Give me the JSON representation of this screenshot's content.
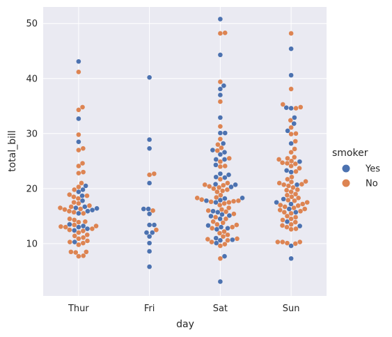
{
  "chart_data": {
    "type": "scatter",
    "subtype": "swarm",
    "categories": [
      "Thur",
      "Fri",
      "Sat",
      "Sun"
    ],
    "xlabel": "day",
    "ylabel": "total_bill",
    "ylim": [
      0.5,
      53
    ],
    "yticks": [
      10,
      20,
      30,
      40,
      50
    ],
    "grid": true,
    "legend": {
      "title": "smoker",
      "placement": "right"
    },
    "series": [
      {
        "name": "Yes",
        "color": "#4c72b0",
        "values": {
          "Thur": [
            43.1,
            32.7,
            28.5,
            20.5,
            19.8,
            19.4,
            18.7,
            17.8,
            16.7,
            16.5,
            16.4,
            16.1,
            15.9,
            15.5,
            13.5,
            13.2,
            13.0,
            12.7,
            12.4,
            10.3
          ],
          "Fri": [
            40.2,
            28.9,
            27.3,
            21.0,
            16.3,
            16.3,
            15.4,
            13.4,
            13.4,
            12.0,
            12.0,
            11.3,
            10.1,
            8.6,
            5.8
          ],
          "Sat": [
            50.8,
            44.3,
            38.7,
            38.1,
            37.0,
            32.9,
            30.1,
            30.1,
            28.2,
            27.0,
            26.6,
            26.2,
            25.3,
            25.3,
            24.3,
            22.7,
            22.5,
            22.1,
            22.0,
            20.8,
            20.7,
            20.3,
            18.3,
            18.2,
            17.9,
            17.8,
            17.5,
            15.9,
            15.7,
            15.3,
            15.1,
            15.0,
            14.5,
            13.3,
            13.0,
            12.8,
            12.6,
            11.0,
            10.7,
            10.6,
            10.1,
            7.7,
            3.1
          ],
          "Sun": [
            45.4,
            40.6,
            34.7,
            34.6,
            32.9,
            31.8,
            30.5,
            28.2,
            24.9,
            23.3,
            23.0,
            20.7,
            18.1,
            17.5,
            17.2,
            16.3,
            15.7,
            14.0,
            13.2,
            9.6,
            7.3
          ]
        }
      },
      {
        "name": "No",
        "color": "#dd8452",
        "values": {
          "Thur": [
            41.2,
            34.8,
            34.3,
            29.8,
            27.3,
            27.0,
            24.6,
            24.1,
            23.0,
            22.8,
            21.0,
            20.3,
            19.8,
            18.9,
            18.7,
            18.5,
            18.2,
            17.5,
            17.3,
            16.9,
            16.7,
            16.5,
            16.3,
            16.2,
            15.9,
            15.7,
            15.5,
            14.5,
            14.3,
            14.0,
            13.9,
            13.4,
            13.2,
            13.1,
            13.0,
            12.7,
            12.5,
            12.3,
            12.0,
            11.6,
            11.4,
            11.1,
            10.9,
            10.5,
            10.3,
            10.1,
            9.8,
            8.5,
            8.5,
            8.4,
            7.8,
            7.7
          ],
          "Fri": [
            22.7,
            22.5,
            16.0,
            12.5
          ],
          "Sat": [
            48.3,
            48.2,
            39.4,
            35.8,
            31.3,
            29.0,
            28.0,
            27.4,
            26.9,
            25.5,
            24.9,
            24.1,
            24.0,
            21.7,
            21.0,
            20.7,
            20.6,
            20.4,
            20.2,
            20.0,
            19.8,
            19.6,
            19.4,
            18.8,
            18.4,
            18.3,
            18.0,
            17.8,
            17.7,
            17.6,
            17.5,
            17.3,
            17.0,
            16.5,
            16.2,
            16.0,
            15.8,
            15.4,
            14.8,
            14.5,
            14.0,
            13.8,
            13.5,
            13.4,
            13.0,
            12.8,
            12.2,
            11.9,
            11.6,
            11.3,
            10.9,
            10.8,
            10.6,
            10.3,
            9.9,
            9.6,
            7.3
          ],
          "Sun": [
            48.2,
            38.1,
            35.3,
            34.8,
            34.6,
            32.4,
            31.1,
            30.0,
            29.9,
            28.6,
            27.2,
            26.6,
            25.7,
            25.5,
            25.3,
            25.0,
            24.7,
            24.6,
            24.5,
            24.1,
            23.7,
            23.1,
            22.1,
            21.7,
            21.3,
            21.2,
            21.0,
            20.8,
            20.7,
            20.5,
            20.2,
            19.8,
            19.7,
            19.4,
            19.0,
            18.8,
            18.5,
            18.3,
            17.9,
            17.8,
            17.5,
            17.2,
            17.0,
            16.9,
            16.7,
            16.5,
            16.3,
            16.1,
            15.9,
            15.7,
            15.5,
            15.0,
            14.8,
            14.5,
            14.3,
            13.9,
            13.5,
            13.3,
            13.0,
            12.7,
            12.6,
            10.3,
            10.3,
            10.3,
            10.1,
            10.0
          ]
        }
      }
    ]
  }
}
